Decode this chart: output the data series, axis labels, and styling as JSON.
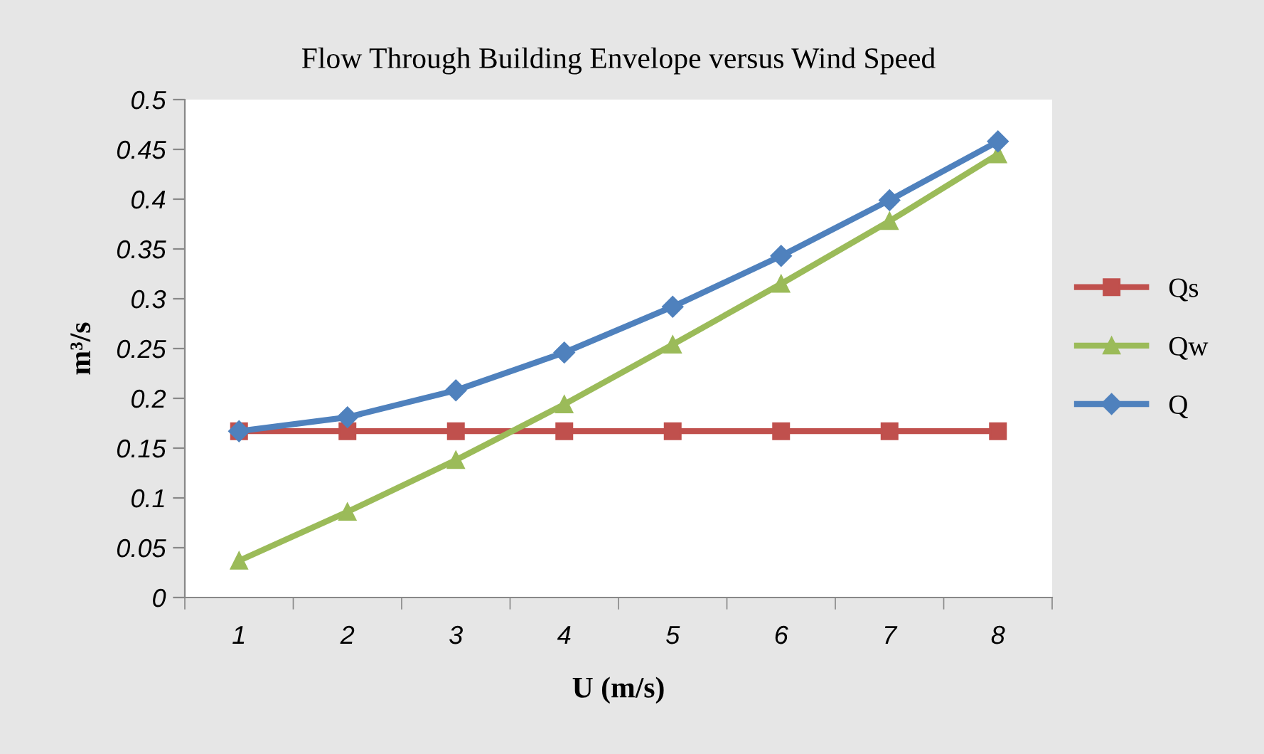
{
  "chart_data": {
    "type": "line",
    "title": "Flow Through Building Envelope versus Wind Speed",
    "xlabel": "U (m/s)",
    "ylabel": "m³/s",
    "categories": [
      "1",
      "2",
      "3",
      "4",
      "5",
      "6",
      "7",
      "8"
    ],
    "series": [
      {
        "name": "Qs",
        "color": "#c0504d",
        "marker": "square",
        "values": [
          0.167,
          0.167,
          0.167,
          0.167,
          0.167,
          0.167,
          0.167,
          0.167
        ]
      },
      {
        "name": "Qw",
        "color": "#9bbb59",
        "marker": "triangle",
        "values": [
          0.037,
          0.086,
          0.138,
          0.194,
          0.254,
          0.315,
          0.378,
          0.445
        ]
      },
      {
        "name": "Q",
        "color": "#4f81bd",
        "marker": "diamond",
        "values": [
          0.167,
          0.181,
          0.208,
          0.246,
          0.292,
          0.343,
          0.399,
          0.458
        ]
      }
    ],
    "ylim": [
      0,
      0.5
    ],
    "yticks": [
      0,
      0.05,
      0.1,
      0.15,
      0.2,
      0.25,
      0.3,
      0.35,
      0.4,
      0.45,
      0.5
    ],
    "grid": false,
    "legend": "right",
    "line_style": "solid"
  }
}
